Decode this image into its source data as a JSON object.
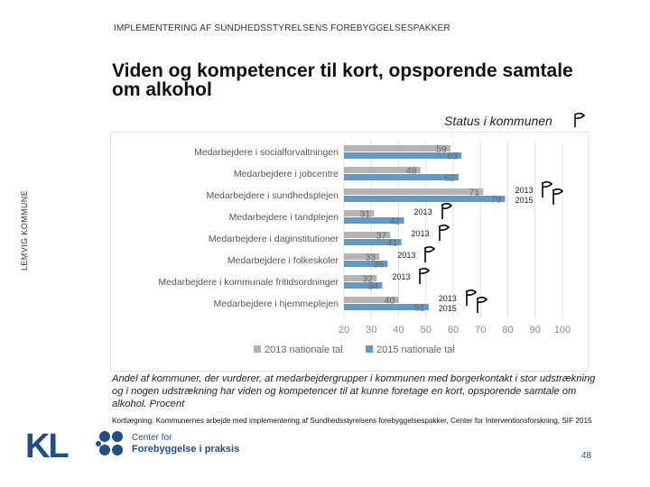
{
  "header": "IMPLEMENTERING AF SUNDHEDSSTYRELSENS FOREBYGGELSESPAKKER",
  "title": "Viden og kompetencer til kort, opsporende samtale om alkohol",
  "status_label": "Status i kommunen",
  "side_label": "LEMVIG KOMMUNE",
  "caption": "Andel af kommuner, der vurderer, at medarbejdergrupper i kommunen med borgerkontakt i stor udstrækning og i nogen udstrækning har viden og kompetencer til at kunne foretage en kort, opsporende samtale om alkohol. Procent",
  "source": "Kortlægning: Kommunernes arbejde med implementering af Sundhedsstyrelsens forebyggelsespakker, Center for Interventionsforskning, SIF 2015",
  "logo": {
    "kl": "KL",
    "line1": "Center for",
    "line2": "Forebyggelse i praksis"
  },
  "page_number": "48",
  "colors": {
    "series_2013": "#b3b3b3",
    "series_2015": "#5b9bd5",
    "brand": "#1f4e8c"
  },
  "year_markers": [
    {
      "row": 2,
      "lines": [
        "2013",
        "2015"
      ],
      "flags": 2
    },
    {
      "row": 3,
      "lines": [
        "2013"
      ],
      "flags": 1
    },
    {
      "row": 4,
      "lines": [
        "2013"
      ],
      "flags": 1
    },
    {
      "row": 5,
      "lines": [
        "2013"
      ],
      "flags": 1
    },
    {
      "row": 6,
      "lines": [
        "2013"
      ],
      "flags": 1
    },
    {
      "row": 7,
      "lines": [
        "2013",
        "2015"
      ],
      "flags": 2
    }
  ],
  "chart_data": {
    "type": "bar",
    "orientation": "horizontal",
    "categories": [
      "Medarbejdere i socialforvaltningen",
      "Medarbejdere i jobcentre",
      "Medarbejdere i sundhedsplejen",
      "Medarbejdere i tandplejen",
      "Medarbejdere i daginstitutioner",
      "Medarbejdere i folkeskoler",
      "Medarbejdere i kommunale fritidsordninger",
      "Medarbejdere i hjemmeplejen"
    ],
    "series": [
      {
        "name": "2013 nationale tal",
        "values": [
          59,
          48,
          71,
          31,
          37,
          33,
          32,
          40
        ]
      },
      {
        "name": "2015 nationale tal",
        "values": [
          63,
          62,
          79,
          42,
          41,
          36,
          34,
          51
        ]
      }
    ],
    "xlim": [
      20,
      100
    ],
    "xticks": [
      20,
      30,
      40,
      50,
      60,
      70,
      80,
      90,
      100
    ],
    "grid": true,
    "legend": "bottom"
  }
}
